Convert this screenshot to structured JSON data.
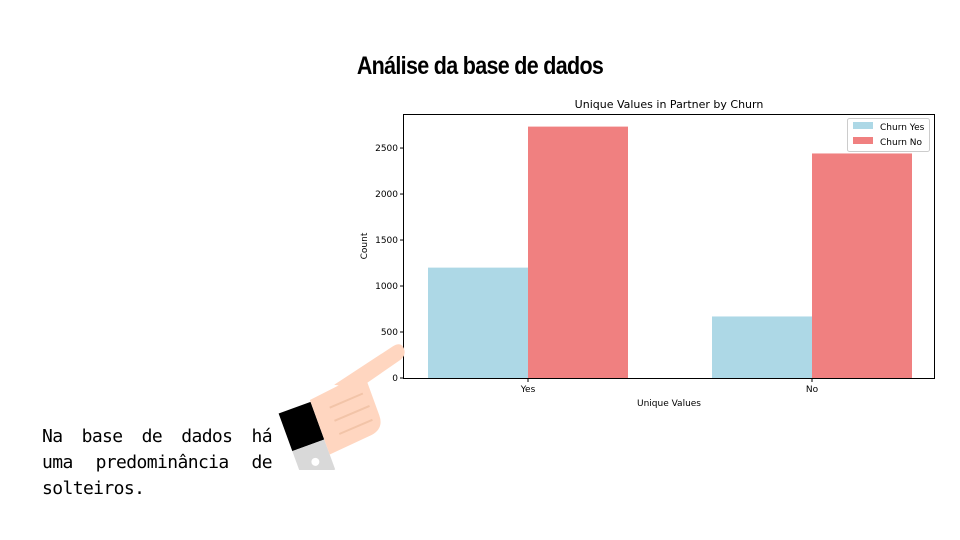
{
  "slide": {
    "title": "Análise da base de dados",
    "body_text": "Na base de dados há uma predominância de solteiros."
  },
  "colors": {
    "churn_yes": "#add8e6",
    "churn_no": "#f08080",
    "hand_skin": "#ffd6c0",
    "sleeve_black": "#000000",
    "sleeve_gray": "#d9d9d9"
  },
  "decoration": {
    "hand_icon": "pointing-hand-icon"
  },
  "chart_data": {
    "type": "bar",
    "title": "Unique Values in Partner by Churn",
    "xlabel": "Unique Values",
    "ylabel": "Count",
    "categories": [
      "Yes",
      "No"
    ],
    "series": [
      {
        "name": "Churn Yes",
        "values": [
          1200,
          669
        ]
      },
      {
        "name": "Churn No",
        "values": [
          2733,
          2441
        ]
      }
    ],
    "ylim": [
      0,
      2870
    ],
    "yticks": [
      0,
      500,
      1000,
      1500,
      2000,
      2500
    ],
    "legend": "top-right",
    "grid": false
  }
}
